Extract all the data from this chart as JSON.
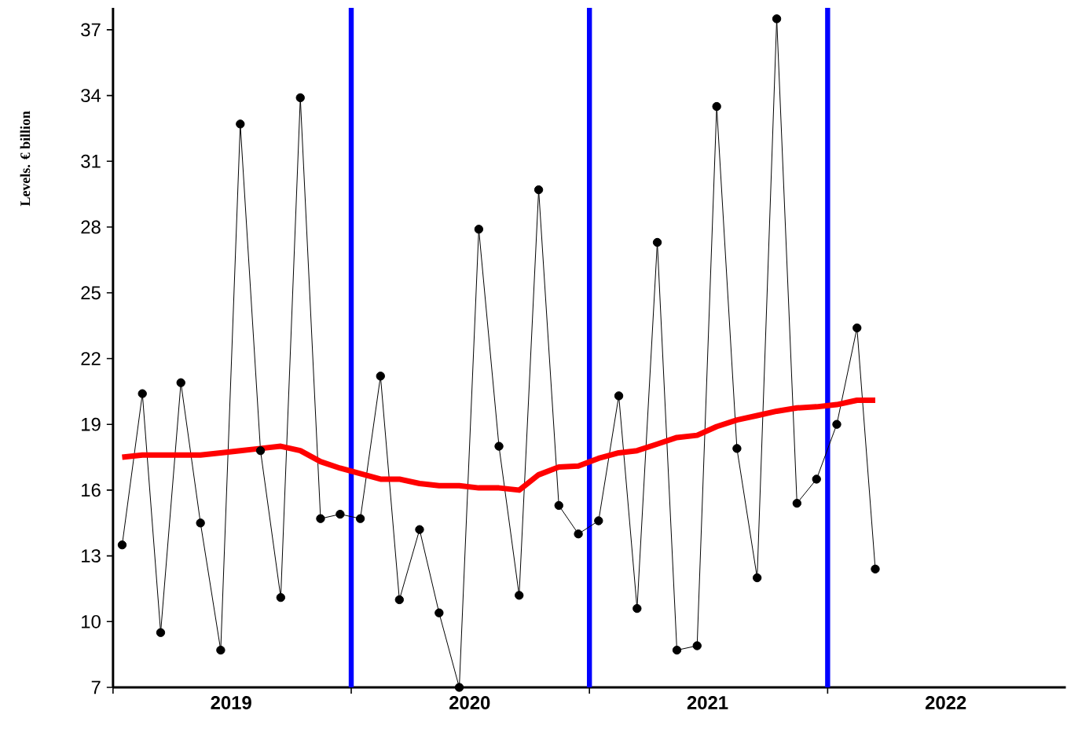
{
  "chart_data": {
    "type": "line",
    "ylabel": "Levels. € billion",
    "xlim": [
      "2019",
      "2023"
    ],
    "ylim": [
      7,
      38
    ],
    "yticks": [
      7,
      10,
      13,
      16,
      19,
      22,
      25,
      28,
      31,
      34,
      37
    ],
    "xticks": [
      {
        "value": "2019",
        "label": null
      },
      {
        "value": "2020",
        "label": null
      },
      {
        "value": "2021",
        "label": null
      },
      {
        "value": "2022",
        "label": null
      },
      {
        "value": "2019-07-01",
        "label": "2019"
      },
      {
        "value": "2020-07-01",
        "label": "2020"
      },
      {
        "value": "2021-07-01",
        "label": "2021"
      },
      {
        "value": "2022-07-01",
        "label": "2022"
      }
    ],
    "grid": false,
    "x": [
      "2019-01-15",
      "2019-02-15",
      "2019-03-15",
      "2019-04-15",
      "2019-05-15",
      "2019-06-15",
      "2019-07-15",
      "2019-08-15",
      "2019-09-15",
      "2019-10-15",
      "2019-11-15",
      "2019-12-15",
      "2020-01-15",
      "2020-02-15",
      "2020-03-15",
      "2020-04-15",
      "2020-05-15",
      "2020-06-15",
      "2020-07-15",
      "2020-08-15",
      "2020-09-15",
      "2020-10-15",
      "2020-11-15",
      "2020-12-15",
      "2021-01-15",
      "2021-02-15",
      "2021-03-15",
      "2021-04-15",
      "2021-05-15",
      "2021-06-15",
      "2021-07-15",
      "2021-08-15",
      "2021-09-15",
      "2021-10-15",
      "2021-11-15",
      "2021-12-15",
      "2022-01-15",
      "2022-02-15",
      "2022-03-15"
    ],
    "series": [
      {
        "color": "#000000",
        "marker": "circle",
        "values": [
          13.5,
          20.4,
          9.5,
          20.9,
          14.5,
          8.7,
          32.7,
          17.8,
          11.1,
          33.9,
          14.7,
          14.9,
          14.7,
          21.2,
          11.0,
          14.2,
          10.4,
          7.0,
          27.9,
          18.0,
          11.2,
          29.7,
          15.3,
          14.0,
          14.6,
          20.3,
          10.6,
          27.3,
          8.7,
          8.9,
          33.5,
          17.9,
          12.0,
          37.5,
          15.4,
          16.5,
          19.0,
          23.4,
          12.4
        ]
      },
      {
        "color": "#ff0000",
        "marker": "none",
        "values": [
          17.5,
          17.6,
          17.6,
          17.6,
          17.6,
          17.7,
          17.8,
          17.9,
          18.0,
          17.8,
          17.3,
          17.0,
          16.75,
          16.5,
          16.5,
          16.3,
          16.2,
          16.2,
          16.1,
          16.1,
          16.0,
          16.7,
          17.05,
          17.1,
          17.45,
          17.7,
          17.8,
          18.1,
          18.4,
          18.5,
          18.9,
          19.2,
          19.4,
          19.6,
          19.75,
          19.8,
          19.9,
          20.1,
          20.1
        ]
      }
    ],
    "ref_lines": [
      {
        "axis": "x",
        "value": "2020",
        "color": "#0000ff"
      },
      {
        "axis": "x",
        "value": "2021",
        "color": "#0000ff"
      },
      {
        "axis": "x",
        "value": "2022",
        "color": "#0000ff"
      }
    ]
  }
}
